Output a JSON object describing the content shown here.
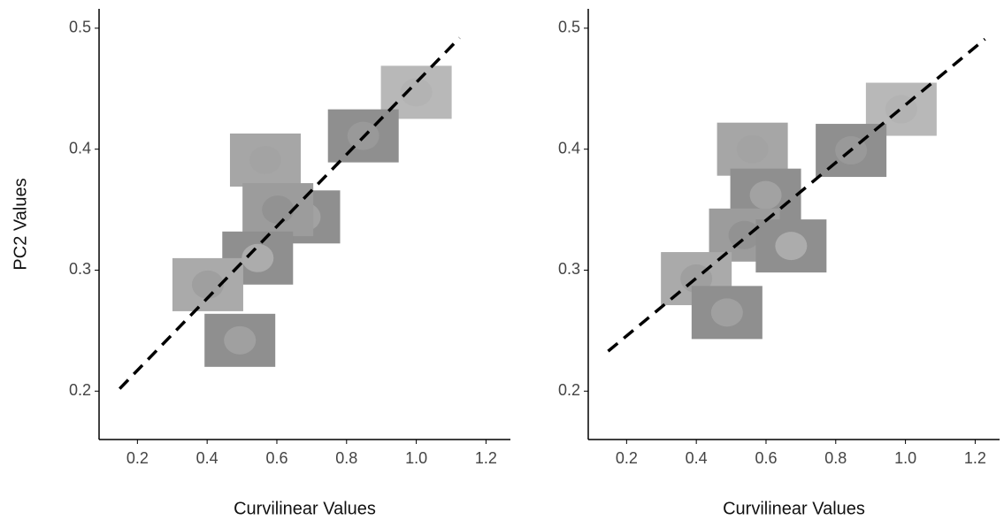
{
  "chart_data": [
    {
      "type": "scatter",
      "xlabel": "Curvilinear Values",
      "ylabel": "PC2 Values",
      "x": [
        1.0,
        0.848,
        0.567,
        0.68,
        0.603,
        0.545,
        0.402,
        0.494
      ],
      "y": [
        0.447,
        0.411,
        0.391,
        0.344,
        0.35,
        0.31,
        0.288,
        0.242
      ],
      "color": "#8f8f8f",
      "trend_line": {
        "x": [
          0.149,
          1.124
        ],
        "y": [
          0.202,
          0.492
        ],
        "color": "#000000"
      },
      "xlim": [
        0.09,
        1.27
      ],
      "ylim": [
        0.16,
        0.516
      ],
      "xticks": [
        0.2,
        0.4,
        0.6,
        0.8,
        {
          "value": 1,
          "label": "1.0"
        },
        1.2
      ],
      "yticks": [
        0.2,
        0.3,
        0.4,
        0.5
      ],
      "grid": false
    },
    {
      "type": "scatter",
      "xlabel": "Curvilinear Values",
      "x": [
        0.988,
        0.844,
        0.561,
        0.599,
        0.538,
        0.672,
        0.4,
        0.488
      ],
      "y": [
        0.433,
        0.399,
        0.4,
        0.362,
        0.329,
        0.32,
        0.293,
        0.265
      ],
      "color": "#8f8f8f",
      "trend_line": {
        "x": [
          0.147,
          1.228
        ],
        "y": [
          0.233,
          0.491
        ],
        "color": "#000000"
      },
      "xlim": [
        0.09,
        1.27
      ],
      "ylim": [
        0.16,
        0.516
      ],
      "xticks": [
        0.2,
        0.4,
        0.6,
        0.8,
        {
          "value": 1,
          "label": "1.0"
        },
        1.2
      ],
      "yticks": [
        0.2,
        0.3,
        0.4,
        0.5
      ],
      "grid": false
    }
  ]
}
